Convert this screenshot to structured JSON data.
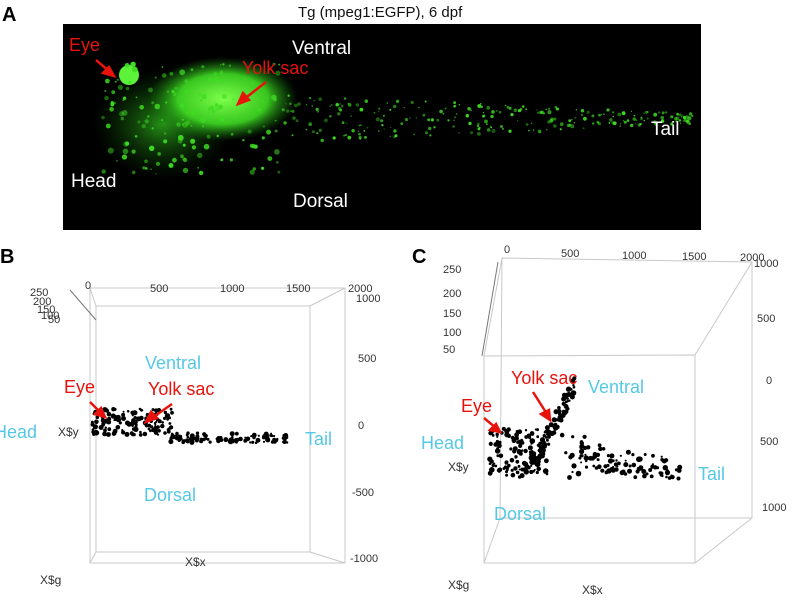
{
  "figure": {
    "panelA": {
      "letter": "A",
      "title": "Tg (mpeg1:EGFP), 6 dpf",
      "labels": {
        "eye": "Eye",
        "yolk_sac": "Yolk sac",
        "ventral": "Ventral",
        "tail": "Tail",
        "head": "Head",
        "dorsal": "Dorsal"
      }
    },
    "panelB": {
      "letter": "B",
      "labels": {
        "eye": "Eye",
        "yolk_sac": "Yolk sac",
        "ventral": "Ventral",
        "tail": "Tail",
        "head": "Head",
        "dorsal": "Dorsal"
      },
      "axes": {
        "x": "X$x",
        "y": "X$y",
        "g": "X$g"
      },
      "x_ticks": [
        "0",
        "500",
        "1000",
        "1500",
        "2000"
      ],
      "y_ticks": [
        "1000",
        "500",
        "0",
        "-500",
        "-1000"
      ],
      "z_ticks": [
        "250",
        "200",
        "150",
        "100",
        "50"
      ]
    },
    "panelC": {
      "letter": "C",
      "labels": {
        "eye": "Eye",
        "yolk_sac": "Yolk sac",
        "ventral": "Ventral",
        "tail": "Tail",
        "head": "Head",
        "dorsal": "Dorsal"
      },
      "axes": {
        "x": "X$x",
        "y": "X$y",
        "g": "X$g"
      },
      "x_ticks": [
        "0",
        "500",
        "1000",
        "1500",
        "2000"
      ],
      "y_ticks": [
        "1000",
        "500",
        "0",
        "500",
        "1000"
      ],
      "z_ticks": [
        "250",
        "200",
        "150",
        "100",
        "50"
      ]
    },
    "colors": {
      "egfp": "#39d92b",
      "annotation_red": "#e8120c",
      "annotation_cyan": "#55c8e6",
      "scatter": "#000000"
    }
  }
}
